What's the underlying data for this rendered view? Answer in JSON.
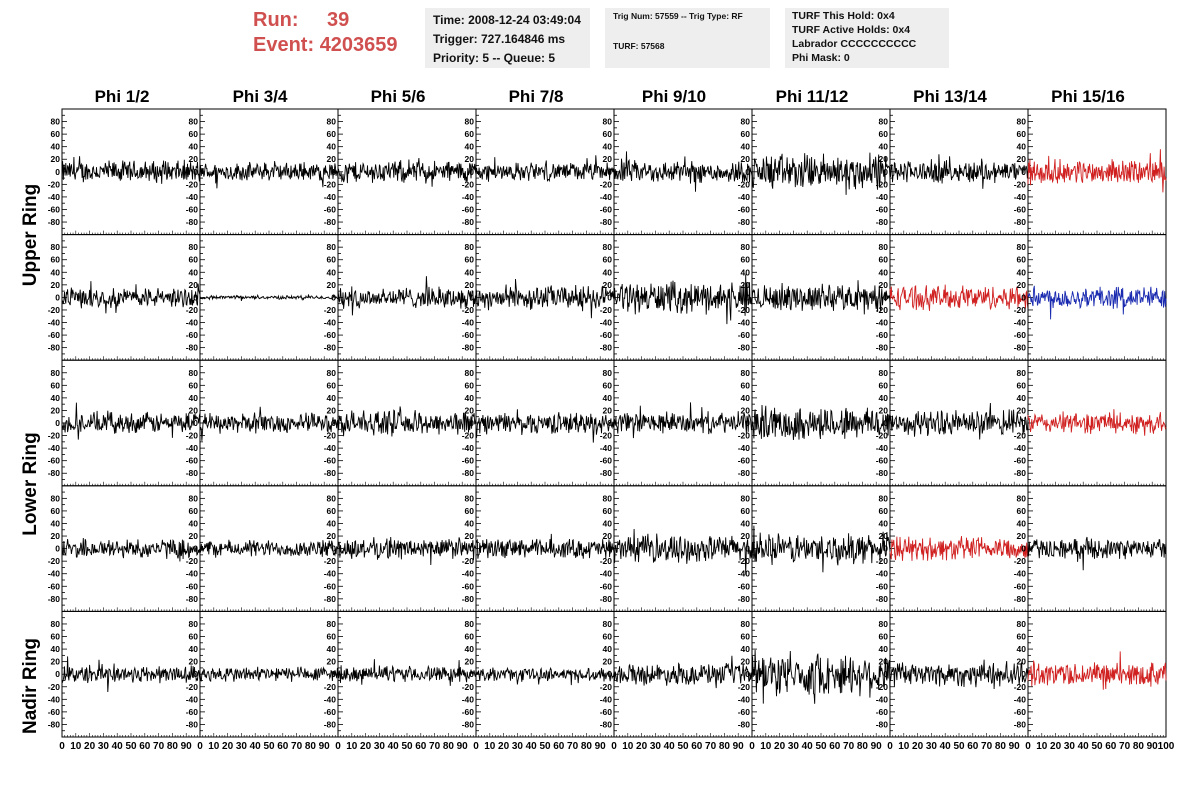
{
  "run_info": {
    "run_label": "Run:",
    "run_value": "39",
    "event_label": "Event:",
    "event_value": "4203659"
  },
  "time_box": {
    "time": "Time: 2008-12-24 03:49:04",
    "trigger": "Trigger: 727.164846 ms",
    "priority": "Priority: 5 -- Queue: 5"
  },
  "trig_box": {
    "line1": "Trig Num: 57559 -- Trig Type: RF",
    "line2": "TURF: 57568"
  },
  "turf_box": {
    "this_hold": "TURF This Hold: 0x4",
    "active_holds": "TURF Active Holds: 0x4",
    "labrador": "Labrador CCCCCCCCCC",
    "phi_mask": "Phi Mask: 0"
  },
  "columns": [
    "Phi 1/2",
    "Phi 3/4",
    "Phi 5/6",
    "Phi 7/8",
    "Phi 9/10",
    "Phi 11/12",
    "Phi 13/14",
    "Phi 15/16"
  ],
  "ring_labels": [
    "Upper Ring",
    "Lower Ring",
    "Nadir Ring"
  ],
  "chart_data": {
    "type": "line",
    "description": "5 rows x 8 columns of waveform traces; amplitude vs time",
    "xlim": [
      0,
      100
    ],
    "ylim": [
      -100,
      100
    ],
    "x_ticks": [
      0,
      10,
      20,
      30,
      40,
      50,
      60,
      70,
      80,
      90,
      100
    ],
    "y_ticks": [
      -80,
      -60,
      -40,
      -20,
      0,
      20,
      40,
      60,
      80
    ],
    "colors": {
      "black": "#000000",
      "red": "#d02020",
      "blue": "#1a2bb0"
    },
    "traces": [
      [
        {
          "amp": 16,
          "color": "black"
        },
        {
          "amp": 13,
          "color": "black"
        },
        {
          "amp": 16,
          "color": "black"
        },
        {
          "amp": 13,
          "color": "black"
        },
        {
          "amp": 16,
          "color": "black"
        },
        {
          "amp": 26,
          "color": "black"
        },
        {
          "amp": 16,
          "color": "black"
        },
        {
          "amp": 17,
          "color": "red"
        }
      ],
      [
        {
          "amp": 14,
          "color": "black"
        },
        {
          "amp": 2.5,
          "color": "black"
        },
        {
          "amp": 15,
          "color": "black"
        },
        {
          "amp": 17,
          "color": "black"
        },
        {
          "amp": 22,
          "color": "black"
        },
        {
          "amp": 19,
          "color": "black"
        },
        {
          "amp": 17,
          "color": "red"
        },
        {
          "amp": 16,
          "color": "blue"
        }
      ],
      [
        {
          "amp": 15,
          "color": "black"
        },
        {
          "amp": 14,
          "color": "black"
        },
        {
          "amp": 17,
          "color": "black"
        },
        {
          "amp": 15,
          "color": "black"
        },
        {
          "amp": 15,
          "color": "black"
        },
        {
          "amp": 24,
          "color": "black"
        },
        {
          "amp": 18,
          "color": "black"
        },
        {
          "amp": 15,
          "color": "red"
        }
      ],
      [
        {
          "amp": 14,
          "color": "black"
        },
        {
          "amp": 12,
          "color": "black"
        },
        {
          "amp": 15,
          "color": "black"
        },
        {
          "amp": 14,
          "color": "black"
        },
        {
          "amp": 19,
          "color": "black"
        },
        {
          "amp": 21,
          "color": "black"
        },
        {
          "amp": 17,
          "color": "red"
        },
        {
          "amp": 14,
          "color": "black"
        }
      ],
      [
        {
          "amp": 13,
          "color": "black"
        },
        {
          "amp": 11,
          "color": "black"
        },
        {
          "amp": 11,
          "color": "black"
        },
        {
          "amp": 9,
          "color": "black"
        },
        {
          "amp": 15,
          "color": "black"
        },
        {
          "amp": 30,
          "color": "black"
        },
        {
          "amp": 18,
          "color": "black"
        },
        {
          "amp": 17,
          "color": "red"
        }
      ]
    ]
  }
}
